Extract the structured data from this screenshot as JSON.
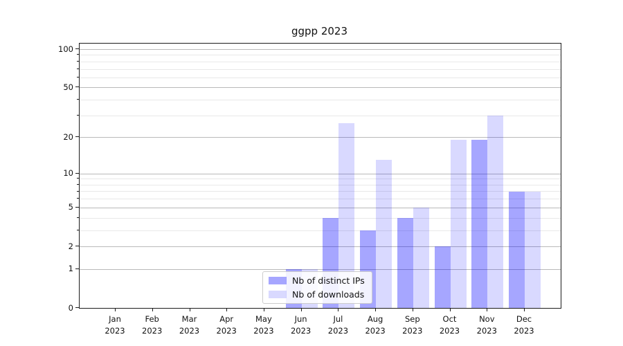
{
  "title": "ggpp 2023",
  "chart_data": {
    "type": "bar",
    "title": "ggpp 2023",
    "categories": [
      "Jan 2023",
      "Feb 2023",
      "Mar 2023",
      "Apr 2023",
      "May 2023",
      "Jun 2023",
      "Jul 2023",
      "Aug 2023",
      "Sep 2023",
      "Oct 2023",
      "Nov 2023",
      "Dec 2023"
    ],
    "series": [
      {
        "name": "Nb of distinct IPs",
        "color": "rgba(0,0,255,0.35)",
        "values": [
          0,
          0,
          0,
          0,
          0,
          1,
          4,
          3,
          4,
          2,
          19,
          7
        ]
      },
      {
        "name": "Nb of downloads",
        "color": "rgba(0,0,255,0.15)",
        "values": [
          0,
          0,
          0,
          0,
          0,
          1,
          26,
          13,
          5,
          19,
          30,
          7
        ]
      }
    ],
    "y_scale": "log10(1+v)",
    "ylim": [
      0,
      110
    ],
    "y_major_ticks": [
      0,
      1,
      2,
      5,
      10,
      20,
      50,
      100
    ],
    "y_minor_ticks": [
      3,
      4,
      6,
      7,
      8,
      9,
      30,
      40,
      60,
      70,
      80,
      90
    ],
    "grid": "major+minor horizontal",
    "legend_position": "lower center"
  },
  "legend": {
    "items": [
      {
        "label": "Nb of distinct IPs"
      },
      {
        "label": "Nb of downloads"
      }
    ]
  },
  "colors": {
    "bar_ips": "rgba(0,0,255,0.35)",
    "bar_downloads": "rgba(0,0,255,0.15)",
    "grid_major": "#b9b9b9",
    "grid_minor": "#e8e8e8",
    "spine": "#1a1a1a"
  }
}
